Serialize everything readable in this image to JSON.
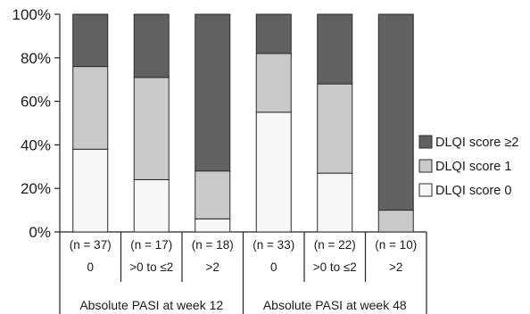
{
  "chart_data": {
    "type": "bar",
    "stacked": true,
    "ylim": [
      0,
      100
    ],
    "yticks": [
      "0%",
      "20%",
      "40%",
      "60%",
      "80%",
      "100%"
    ],
    "grid": false,
    "legend_position": "right",
    "colors": {
      "DLQI score 0": "#f7f7f7",
      "DLQI score 1": "#c9c9c9",
      "DLQI score ≥2": "#616161"
    },
    "categories": [
      {
        "n": "(n = 37)",
        "pasi": "0"
      },
      {
        "n": "(n = 17)",
        "pasi": ">0 to ≤2"
      },
      {
        "n": "(n = 18)",
        "pasi": ">2"
      },
      {
        "n": "(n = 33)",
        "pasi": "0"
      },
      {
        "n": "(n = 22)",
        "pasi": ">0 to ≤2"
      },
      {
        "n": "(n = 10)",
        "pasi": ">2"
      }
    ],
    "groups": [
      {
        "label": "Absolute PASI at week 12",
        "categories": [
          0,
          1,
          2
        ]
      },
      {
        "label": "Absolute PASI at week 48",
        "categories": [
          3,
          4,
          5
        ]
      }
    ],
    "series": [
      {
        "name": "DLQI score 0",
        "values": [
          38,
          24,
          6,
          55,
          27,
          0
        ]
      },
      {
        "name": "DLQI score 1",
        "values": [
          38,
          47,
          22,
          27,
          41,
          10
        ]
      },
      {
        "name": "DLQI score ≥2",
        "values": [
          24,
          29,
          72,
          18,
          32,
          90
        ]
      }
    ],
    "legend_order": [
      "DLQI score ≥2",
      "DLQI score 1",
      "DLQI score 0"
    ]
  }
}
